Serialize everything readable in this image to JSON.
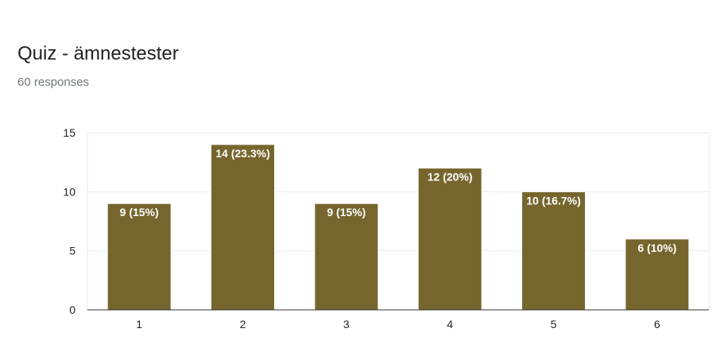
{
  "header": {
    "title": "Quiz - ämnestester",
    "responses": "60 responses"
  },
  "colors": {
    "bar": "#76662e",
    "grid": "#ebebeb",
    "axis": "#333333"
  },
  "chart_data": {
    "type": "bar",
    "categories": [
      "1",
      "2",
      "3",
      "4",
      "5",
      "6"
    ],
    "values": [
      9,
      14,
      9,
      12,
      10,
      6
    ],
    "data_labels": [
      "9 (15%)",
      "14 (23.3%)",
      "9 (15%)",
      "12 (20%)",
      "10 (16.7%)",
      "6 (10%)"
    ],
    "yticks": [
      0,
      5,
      10,
      15
    ],
    "ylim": [
      0,
      15
    ],
    "grid": true,
    "legend": "none"
  }
}
